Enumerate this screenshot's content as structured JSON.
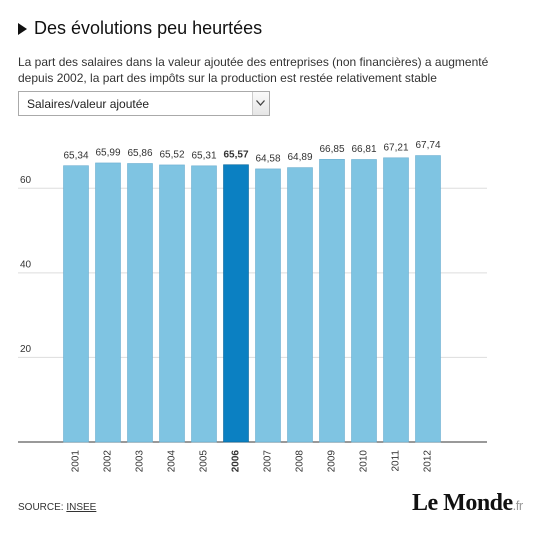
{
  "chart_data": {
    "type": "bar",
    "title": "Des évolutions peu heurtées",
    "subtitle": "La part des salaires dans la valeur ajoutée des entreprises (non financières) a augmenté depuis 2002, la part des impôts sur la production est restée relativement stable",
    "selector": "Salaires/valeur ajoutée",
    "categories": [
      "2001",
      "2002",
      "2003",
      "2004",
      "2005",
      "2006",
      "2007",
      "2008",
      "2009",
      "2010",
      "2011",
      "2012"
    ],
    "values": [
      65.34,
      65.99,
      65.86,
      65.52,
      65.31,
      65.57,
      64.58,
      64.89,
      66.85,
      66.81,
      67.21,
      67.74
    ],
    "value_labels": [
      "65,34",
      "65,99",
      "65,86",
      "65,52",
      "65,31",
      "65,57",
      "64,58",
      "64,89",
      "66,85",
      "66,81",
      "67,21",
      "67,74"
    ],
    "color": "#7fc4e2",
    "highlight": "2006",
    "highlight_color": "#0b80c2",
    "ylim": [
      0,
      70
    ],
    "yticks": [
      20,
      40,
      60
    ],
    "grid": true,
    "source_label": "SOURCE:",
    "source": "INSEE",
    "logo": "Le Monde",
    "logo_suffix": ".fr"
  }
}
